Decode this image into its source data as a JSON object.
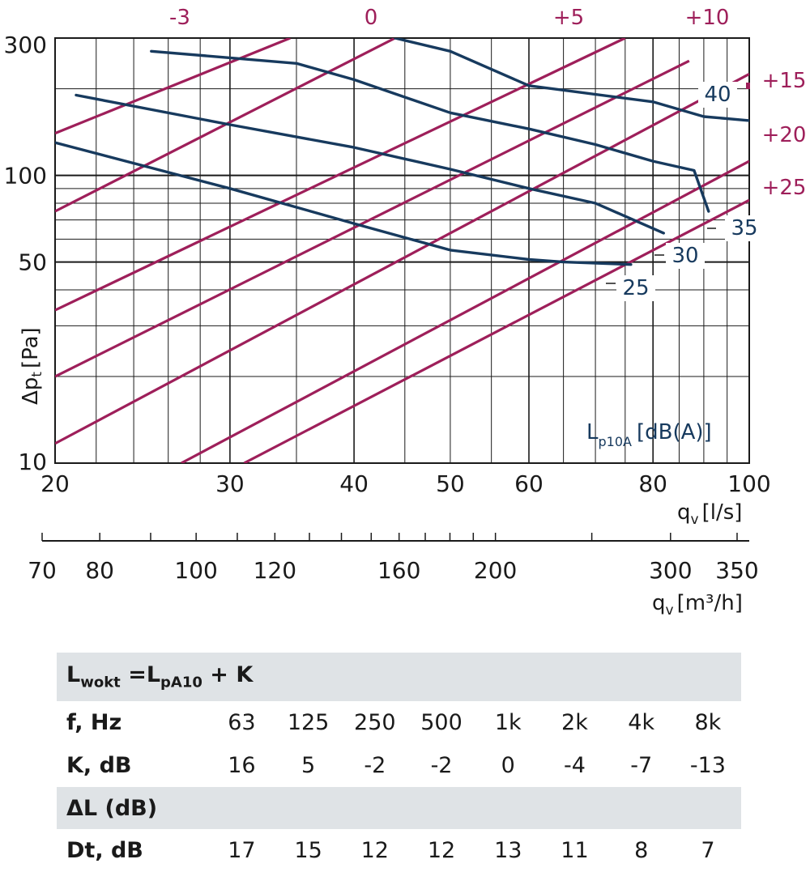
{
  "chart_data": {
    "type": "line",
    "x_axis": {
      "label_main": "q",
      "label_sub": "v",
      "label_unit": "[l/s]",
      "scale": "log",
      "range": [
        20,
        100
      ],
      "ticks": [
        "20",
        "30",
        "40",
        "50",
        "60",
        "80",
        "100"
      ]
    },
    "x2_axis": {
      "label_main": "q",
      "label_sub": "v",
      "label_unit": "[m³/h]",
      "scale": "log",
      "range": [
        70,
        360
      ],
      "ticks": [
        "70",
        "80",
        "100",
        "120",
        "160",
        "200",
        "300",
        "350"
      ]
    },
    "y_axis": {
      "label_main": "Δp",
      "label_sub": "t",
      "label_unit": "[Pa]",
      "scale": "log",
      "range": [
        10,
        300
      ],
      "ticks": [
        "10",
        "50",
        "100",
        "300"
      ]
    },
    "legend_title_main": "L",
    "legend_title_sub": "p10A",
    "legend_title_unit": "[dB(A)]",
    "series": [
      {
        "name": "25",
        "x": [
          20,
          30,
          40,
          50,
          60,
          65,
          76
        ],
        "y": [
          130,
          90,
          68,
          55,
          51,
          50,
          49
        ]
      },
      {
        "name": "30",
        "x": [
          21,
          30,
          40,
          50,
          60,
          70,
          82
        ],
        "y": [
          190,
          150,
          125,
          105,
          90,
          80,
          63
        ]
      },
      {
        "name": "35",
        "x": [
          25,
          35,
          40,
          50,
          60,
          70,
          80,
          88,
          91
        ],
        "y": [
          270,
          245,
          215,
          165,
          145,
          128,
          112,
          104,
          75
        ]
      },
      {
        "name": "40",
        "x": [
          44,
          50,
          60,
          80,
          90,
          100
        ],
        "y": [
          300,
          270,
          205,
          180,
          160,
          155
        ]
      }
    ],
    "correction_lines": [
      {
        "name": "-3",
        "x": [
          20,
          34.5
        ],
        "y": [
          140,
          300
        ]
      },
      {
        "name": "0",
        "x": [
          20,
          44
        ],
        "y": [
          75,
          300
        ]
      },
      {
        "name": "+5",
        "x": [
          20,
          75
        ],
        "y": [
          34,
          300
        ]
      },
      {
        "name": "+10",
        "x": [
          20,
          87
        ],
        "y": [
          20,
          250
        ]
      },
      {
        "name": "+15",
        "x": [
          20,
          100
        ],
        "y": [
          11.7,
          225
        ]
      },
      {
        "name": "+20",
        "x": [
          26.8,
          100
        ],
        "y": [
          10,
          112
        ]
      },
      {
        "name": "+25",
        "x": [
          31,
          100
        ],
        "y": [
          10,
          82
        ]
      }
    ],
    "grid": true
  },
  "table": {
    "formula_main": "L",
    "formula_sub1": "wokt",
    "formula_mid": " =L",
    "formula_sub2": "pA10",
    "formula_end": " + K",
    "freq_label": "f, Hz",
    "freqs": [
      "63",
      "125",
      "250",
      "500",
      "1k",
      "2k",
      "4k",
      "8k"
    ],
    "k_label": "K, dB",
    "k_values": [
      "16",
      "5",
      "-2",
      "-2",
      "0",
      "-4",
      "-7",
      "-13"
    ],
    "dl_label": "ΔL (dB)",
    "dt_label": "Dt, dB",
    "dt_values": [
      "17",
      "15",
      "12",
      "12",
      "13",
      "11",
      "8",
      "7"
    ]
  },
  "colors": {
    "navy": "#173a5e",
    "pink": "#9e1f5a",
    "grid": "#1a1a1a",
    "table_header": "#dfe3e6"
  }
}
